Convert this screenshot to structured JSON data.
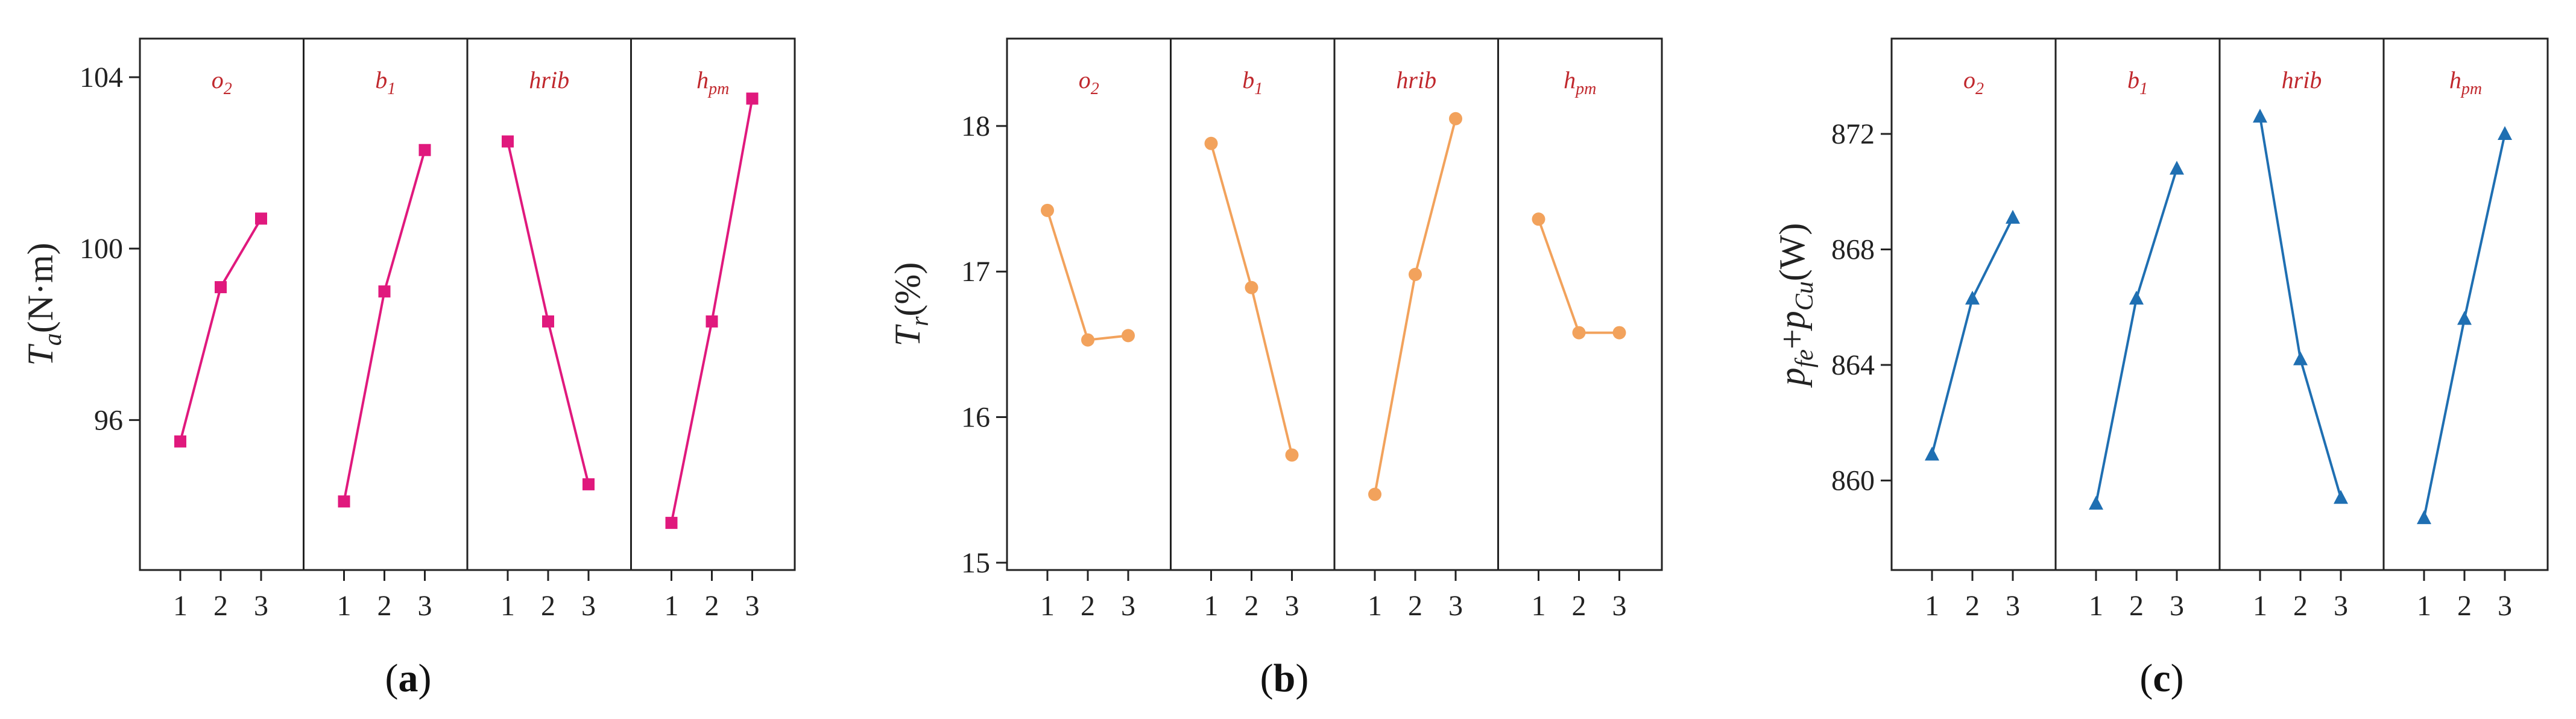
{
  "chart_data": [
    {
      "type": "line",
      "caption": "(a)",
      "caption_letter": "a",
      "ylabel": {
        "main": "T",
        "sub": "a",
        "rest": "(N·m)"
      },
      "yticks": [
        96,
        100,
        104
      ],
      "ylim": [
        92.5,
        104.9
      ],
      "x_ticks": [
        "1",
        "2",
        "3"
      ],
      "color": "#e0197d",
      "marker": "square",
      "panels": [
        {
          "label": "o",
          "label_sub": "2",
          "values": [
            95.5,
            99.1,
            100.7
          ]
        },
        {
          "label": "b",
          "label_sub": "1",
          "values": [
            94.1,
            99.0,
            102.3
          ]
        },
        {
          "label": "hrib",
          "label_sub": "",
          "values": [
            102.5,
            98.3,
            94.5
          ]
        },
        {
          "label": "h",
          "label_sub": "pm",
          "values": [
            93.6,
            98.3,
            103.5
          ]
        }
      ]
    },
    {
      "type": "line",
      "caption": "(b)",
      "caption_letter": "b",
      "ylabel": {
        "main": "T",
        "sub": "r",
        "rest": "(%)"
      },
      "yticks": [
        15,
        16,
        17,
        18
      ],
      "ylim": [
        14.95,
        18.6
      ],
      "x_ticks": [
        "1",
        "2",
        "3"
      ],
      "color": "#f2a25c",
      "marker": "circle",
      "panels": [
        {
          "label": "o",
          "label_sub": "2",
          "values": [
            17.42,
            16.53,
            16.56
          ]
        },
        {
          "label": "b",
          "label_sub": "1",
          "values": [
            17.88,
            16.89,
            15.74
          ]
        },
        {
          "label": "hrib",
          "label_sub": "",
          "values": [
            15.47,
            16.98,
            18.05
          ]
        },
        {
          "label": "h",
          "label_sub": "pm",
          "values": [
            17.36,
            16.58,
            16.58
          ]
        }
      ]
    },
    {
      "type": "line",
      "caption": "(c)",
      "caption_letter": "c",
      "ylabel": {
        "p1": "p",
        "s1": "fe",
        "plus": "+",
        "p2": "p",
        "s2": "Cu",
        "rest": "(W)"
      },
      "yticks": [
        860,
        864,
        868,
        872
      ],
      "ylim": [
        856.9,
        875.3
      ],
      "x_ticks": [
        "1",
        "2",
        "3"
      ],
      "color": "#1f6fb2",
      "marker": "triangle",
      "panels": [
        {
          "label": "o",
          "label_sub": "2",
          "values": [
            860.9,
            866.3,
            869.1
          ]
        },
        {
          "label": "b",
          "label_sub": "1",
          "values": [
            859.2,
            866.3,
            870.8
          ]
        },
        {
          "label": "hrib",
          "label_sub": "",
          "values": [
            872.6,
            864.2,
            859.4
          ]
        },
        {
          "label": "h",
          "label_sub": "pm",
          "values": [
            858.7,
            865.6,
            872.0
          ]
        }
      ]
    }
  ]
}
